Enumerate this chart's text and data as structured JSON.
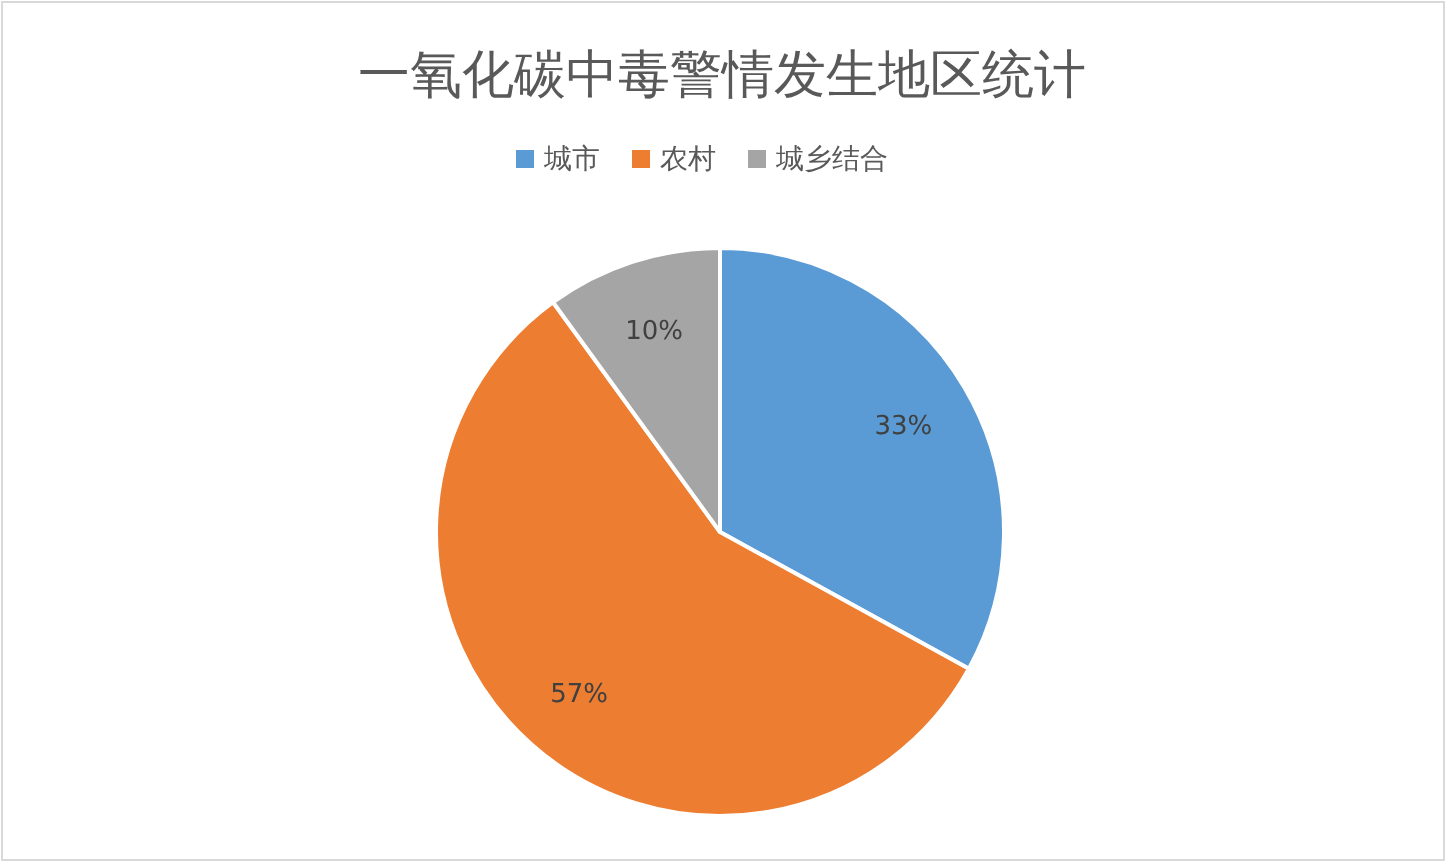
{
  "chart_data": {
    "type": "pie",
    "title": "一氧化碳中毒警情发生地区统计",
    "categories": [
      "城市",
      "农村",
      "城乡结合"
    ],
    "values": [
      33,
      57,
      10
    ],
    "colors": [
      "#5b9bd5",
      "#ed7d31",
      "#a5a5a5"
    ],
    "value_labels": [
      "33%",
      "57%",
      "10%"
    ],
    "legend": "top"
  }
}
